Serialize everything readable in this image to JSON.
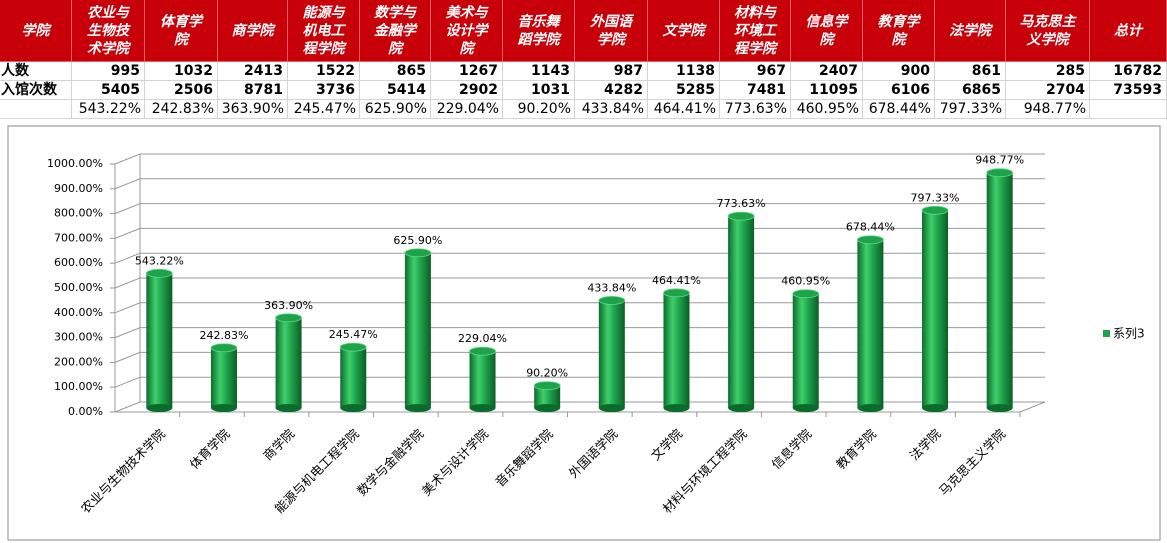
{
  "table": {
    "header": [
      "学院",
      "农业与生物技术学院",
      "体育学院",
      "商学院",
      "能源与机电工程学院",
      "数学与金融学院",
      "美术与设计学院",
      "音乐舞蹈学院",
      "外国语学院",
      "文学院",
      "材料与环境工程学院",
      "信息学院",
      "教育学院",
      "法学院",
      "马克思主义学院",
      "总计"
    ],
    "rows": [
      {
        "label": "人数",
        "values": [
          995,
          1032,
          2413,
          1522,
          865,
          1267,
          1143,
          987,
          1138,
          967,
          2407,
          900,
          861,
          285,
          16782
        ]
      },
      {
        "label": "入馆次数",
        "values": [
          5405,
          2506,
          8781,
          3736,
          5414,
          2902,
          1031,
          4282,
          5285,
          7481,
          11095,
          6106,
          6865,
          2704,
          73593
        ]
      },
      {
        "values": [
          "543.22%",
          "242.83%",
          "363.90%",
          "245.47%",
          "625.90%",
          "229.04%",
          "90.20%",
          "433.84%",
          "464.41%",
          "773.63%",
          "460.95%",
          "678.44%",
          "797.33%",
          "948.77%"
        ]
      }
    ]
  },
  "chart_data": {
    "type": "bar3d",
    "categories": [
      "农业与生物技术学院",
      "体育学院",
      "商学院",
      "能源与机电工程学院",
      "数学与金融学院",
      "美术与设计学院",
      "音乐舞蹈学院",
      "外国语学院",
      "文学院",
      "材料与环境工程学院",
      "信息学院",
      "教育学院",
      "法学院",
      "马克思主义学院"
    ],
    "series": [
      {
        "name": "系列3",
        "color": "#1ea34b",
        "values": [
          543.22,
          242.83,
          363.9,
          245.47,
          625.9,
          229.04,
          90.2,
          433.84,
          464.41,
          773.63,
          460.95,
          678.44,
          797.33,
          948.77
        ],
        "value_labels": [
          "543.22%",
          "242.83%",
          "363.90%",
          "245.47%",
          "625.90%",
          "229.04%",
          "90.20%",
          "433.84%",
          "464.41%",
          "773.63%",
          "460.95%",
          "678.44%",
          "797.33%",
          "948.77%"
        ]
      }
    ],
    "ylim": [
      0,
      1000
    ],
    "yticks": [
      {
        "value": 0,
        "label": "0.00%"
      },
      {
        "value": 100,
        "label": "100.00%"
      },
      {
        "value": 200,
        "label": "200.00%"
      },
      {
        "value": 300,
        "label": "300.00%"
      },
      {
        "value": 400,
        "label": "400.00%"
      },
      {
        "value": 500,
        "label": "500.00%"
      },
      {
        "value": 600,
        "label": "600.00%"
      },
      {
        "value": 700,
        "label": "700.00%"
      },
      {
        "value": 800,
        "label": "800.00%"
      },
      {
        "value": 900,
        "label": "900.00%"
      },
      {
        "value": 1000,
        "label": "1000.00%"
      }
    ],
    "grid": true,
    "legend": "right"
  }
}
